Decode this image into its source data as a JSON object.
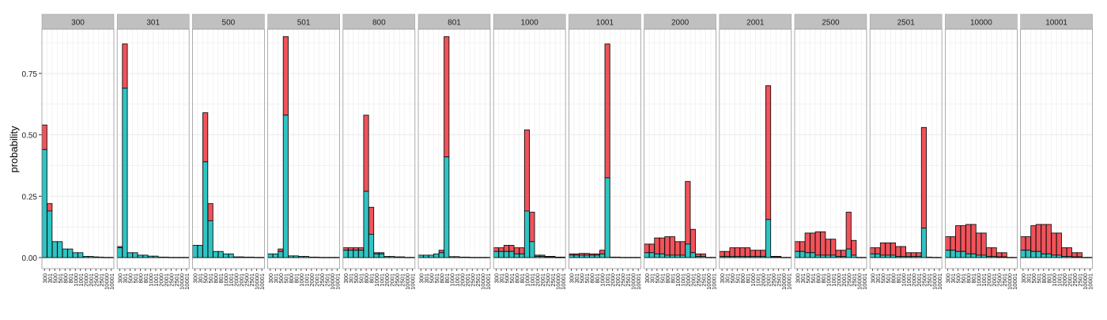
{
  "chart_data": {
    "type": "bar",
    "stacked": true,
    "facet": true,
    "title": "",
    "xlabel": "",
    "ylabel": "probability",
    "ylim": [
      0,
      0.9
    ],
    "yticks": [
      "0.00",
      "0.25",
      "0.50",
      "0.75"
    ],
    "ytick_values": [
      0,
      0.25,
      0.5,
      0.75
    ],
    "grid": true,
    "legend": "none",
    "colors": {
      "lower": "#2EC4C4",
      "upper": "#F2525A",
      "strip_bg": "#C0C0C0",
      "panel_border": "#999999",
      "grid": "#EBEBEB"
    },
    "categories": [
      "300",
      "301",
      "500",
      "501",
      "800",
      "801",
      "1000",
      "1001",
      "2000",
      "2001",
      "2500",
      "2501",
      "10000",
      "10001"
    ],
    "panels": [
      {
        "label": "300",
        "values": [
          [
            0.44,
            0.54
          ],
          [
            0.19,
            0.22
          ],
          [
            0.065,
            0.065
          ],
          [
            0.065,
            0.065
          ],
          [
            0.035,
            0.035
          ],
          [
            0.035,
            0.035
          ],
          [
            0.02,
            0.02
          ],
          [
            0.02,
            0.02
          ],
          [
            0.005,
            0.005
          ],
          [
            0.005,
            0.005
          ],
          [
            0.003,
            0.003
          ],
          [
            0.002,
            0.002
          ],
          [
            0.001,
            0.001
          ],
          [
            0.001,
            0.001
          ]
        ]
      },
      {
        "label": "301",
        "values": [
          [
            0.04,
            0.045
          ],
          [
            0.69,
            0.87
          ],
          [
            0.02,
            0.02
          ],
          [
            0.02,
            0.02
          ],
          [
            0.01,
            0.01
          ],
          [
            0.01,
            0.01
          ],
          [
            0.006,
            0.006
          ],
          [
            0.006,
            0.006
          ],
          [
            0.002,
            0.002
          ],
          [
            0.002,
            0.002
          ],
          [
            0.001,
            0.001
          ],
          [
            0.001,
            0.001
          ],
          [
            0.001,
            0.001
          ],
          [
            0.001,
            0.001
          ]
        ]
      },
      {
        "label": "500",
        "values": [
          [
            0.05,
            0.05
          ],
          [
            0.05,
            0.05
          ],
          [
            0.39,
            0.59
          ],
          [
            0.15,
            0.22
          ],
          [
            0.025,
            0.025
          ],
          [
            0.025,
            0.025
          ],
          [
            0.015,
            0.015
          ],
          [
            0.015,
            0.015
          ],
          [
            0.003,
            0.003
          ],
          [
            0.003,
            0.003
          ],
          [
            0.002,
            0.002
          ],
          [
            0.002,
            0.002
          ],
          [
            0.001,
            0.001
          ],
          [
            0.001,
            0.001
          ]
        ]
      },
      {
        "label": "501",
        "values": [
          [
            0.015,
            0.015
          ],
          [
            0.015,
            0.015
          ],
          [
            0.025,
            0.035
          ],
          [
            0.58,
            0.9
          ],
          [
            0.007,
            0.007
          ],
          [
            0.007,
            0.007
          ],
          [
            0.005,
            0.005
          ],
          [
            0.005,
            0.005
          ],
          [
            0.002,
            0.002
          ],
          [
            0.002,
            0.002
          ],
          [
            0.001,
            0.001
          ],
          [
            0.001,
            0.001
          ],
          [
            0.001,
            0.001
          ],
          [
            0.001,
            0.001
          ]
        ]
      },
      {
        "label": "800",
        "values": [
          [
            0.03,
            0.04
          ],
          [
            0.03,
            0.04
          ],
          [
            0.03,
            0.04
          ],
          [
            0.03,
            0.04
          ],
          [
            0.27,
            0.58
          ],
          [
            0.095,
            0.205
          ],
          [
            0.015,
            0.02
          ],
          [
            0.015,
            0.02
          ],
          [
            0.005,
            0.005
          ],
          [
            0.005,
            0.005
          ],
          [
            0.003,
            0.003
          ],
          [
            0.003,
            0.003
          ],
          [
            0.001,
            0.001
          ],
          [
            0.001,
            0.001
          ]
        ]
      },
      {
        "label": "801",
        "values": [
          [
            0.01,
            0.01
          ],
          [
            0.01,
            0.01
          ],
          [
            0.01,
            0.01
          ],
          [
            0.015,
            0.015
          ],
          [
            0.02,
            0.03
          ],
          [
            0.41,
            0.9
          ],
          [
            0.004,
            0.004
          ],
          [
            0.004,
            0.004
          ],
          [
            0.002,
            0.002
          ],
          [
            0.002,
            0.002
          ],
          [
            0.001,
            0.001
          ],
          [
            0.001,
            0.001
          ],
          [
            0.001,
            0.001
          ],
          [
            0.001,
            0.001
          ]
        ]
      },
      {
        "label": "1000",
        "values": [
          [
            0.025,
            0.04
          ],
          [
            0.025,
            0.04
          ],
          [
            0.025,
            0.05
          ],
          [
            0.025,
            0.05
          ],
          [
            0.015,
            0.04
          ],
          [
            0.015,
            0.04
          ],
          [
            0.19,
            0.52
          ],
          [
            0.065,
            0.185
          ],
          [
            0.005,
            0.01
          ],
          [
            0.005,
            0.01
          ],
          [
            0.003,
            0.005
          ],
          [
            0.003,
            0.005
          ],
          [
            0.001,
            0.002
          ],
          [
            0.001,
            0.002
          ]
        ]
      },
      {
        "label": "1001",
        "values": [
          [
            0.01,
            0.015
          ],
          [
            0.01,
            0.015
          ],
          [
            0.01,
            0.017
          ],
          [
            0.01,
            0.017
          ],
          [
            0.01,
            0.015
          ],
          [
            0.01,
            0.015
          ],
          [
            0.015,
            0.03
          ],
          [
            0.325,
            0.87
          ],
          [
            0.002,
            0.002
          ],
          [
            0.002,
            0.002
          ],
          [
            0.001,
            0.001
          ],
          [
            0.001,
            0.001
          ],
          [
            0.001,
            0.001
          ],
          [
            0.001,
            0.001
          ]
        ]
      },
      {
        "label": "2000",
        "values": [
          [
            0.02,
            0.055
          ],
          [
            0.02,
            0.055
          ],
          [
            0.015,
            0.08
          ],
          [
            0.015,
            0.08
          ],
          [
            0.01,
            0.085
          ],
          [
            0.01,
            0.085
          ],
          [
            0.01,
            0.065
          ],
          [
            0.01,
            0.065
          ],
          [
            0.055,
            0.31
          ],
          [
            0.02,
            0.115
          ],
          [
            0.005,
            0.015
          ],
          [
            0.005,
            0.015
          ],
          [
            0.001,
            0.001
          ],
          [
            0.001,
            0.001
          ]
        ]
      },
      {
        "label": "2001",
        "values": [
          [
            0.005,
            0.025
          ],
          [
            0.005,
            0.025
          ],
          [
            0.005,
            0.04
          ],
          [
            0.005,
            0.04
          ],
          [
            0.005,
            0.04
          ],
          [
            0.005,
            0.04
          ],
          [
            0.005,
            0.03
          ],
          [
            0.005,
            0.03
          ],
          [
            0.005,
            0.03
          ],
          [
            0.155,
            0.7
          ],
          [
            0.003,
            0.005
          ],
          [
            0.003,
            0.005
          ],
          [
            0.001,
            0.001
          ],
          [
            0.001,
            0.001
          ]
        ]
      },
      {
        "label": "2500",
        "values": [
          [
            0.025,
            0.065
          ],
          [
            0.025,
            0.065
          ],
          [
            0.02,
            0.1
          ],
          [
            0.02,
            0.1
          ],
          [
            0.01,
            0.105
          ],
          [
            0.01,
            0.105
          ],
          [
            0.01,
            0.075
          ],
          [
            0.01,
            0.075
          ],
          [
            0.005,
            0.03
          ],
          [
            0.005,
            0.03
          ],
          [
            0.035,
            0.185
          ],
          [
            0.01,
            0.07
          ],
          [
            0.001,
            0.001
          ],
          [
            0.001,
            0.001
          ]
        ]
      },
      {
        "label": "2501",
        "values": [
          [
            0.015,
            0.04
          ],
          [
            0.015,
            0.04
          ],
          [
            0.01,
            0.06
          ],
          [
            0.01,
            0.06
          ],
          [
            0.01,
            0.06
          ],
          [
            0.005,
            0.045
          ],
          [
            0.005,
            0.045
          ],
          [
            0.005,
            0.02
          ],
          [
            0.005,
            0.02
          ],
          [
            0.005,
            0.02
          ],
          [
            0.12,
            0.53
          ],
          [
            0.002,
            0.002
          ],
          [
            0.001,
            0.001
          ],
          [
            0.001,
            0.001
          ]
        ]
      },
      {
        "label": "10000",
        "values": [
          [
            0.03,
            0.085
          ],
          [
            0.03,
            0.085
          ],
          [
            0.025,
            0.13
          ],
          [
            0.025,
            0.13
          ],
          [
            0.015,
            0.135
          ],
          [
            0.015,
            0.135
          ],
          [
            0.01,
            0.1
          ],
          [
            0.01,
            0.1
          ],
          [
            0.005,
            0.04
          ],
          [
            0.005,
            0.04
          ],
          [
            0.003,
            0.02
          ],
          [
            0.003,
            0.02
          ],
          [
            0.001,
            0.001
          ],
          [
            0.001,
            0.001
          ]
        ]
      },
      {
        "label": "10001",
        "values": [
          [
            0.03,
            0.085
          ],
          [
            0.03,
            0.085
          ],
          [
            0.025,
            0.13
          ],
          [
            0.025,
            0.135
          ],
          [
            0.015,
            0.135
          ],
          [
            0.015,
            0.135
          ],
          [
            0.01,
            0.1
          ],
          [
            0.01,
            0.1
          ],
          [
            0.005,
            0.04
          ],
          [
            0.005,
            0.04
          ],
          [
            0.003,
            0.02
          ],
          [
            0.003,
            0.02
          ],
          [
            0.001,
            0.001
          ],
          [
            0.001,
            0.001
          ]
        ]
      }
    ]
  }
}
